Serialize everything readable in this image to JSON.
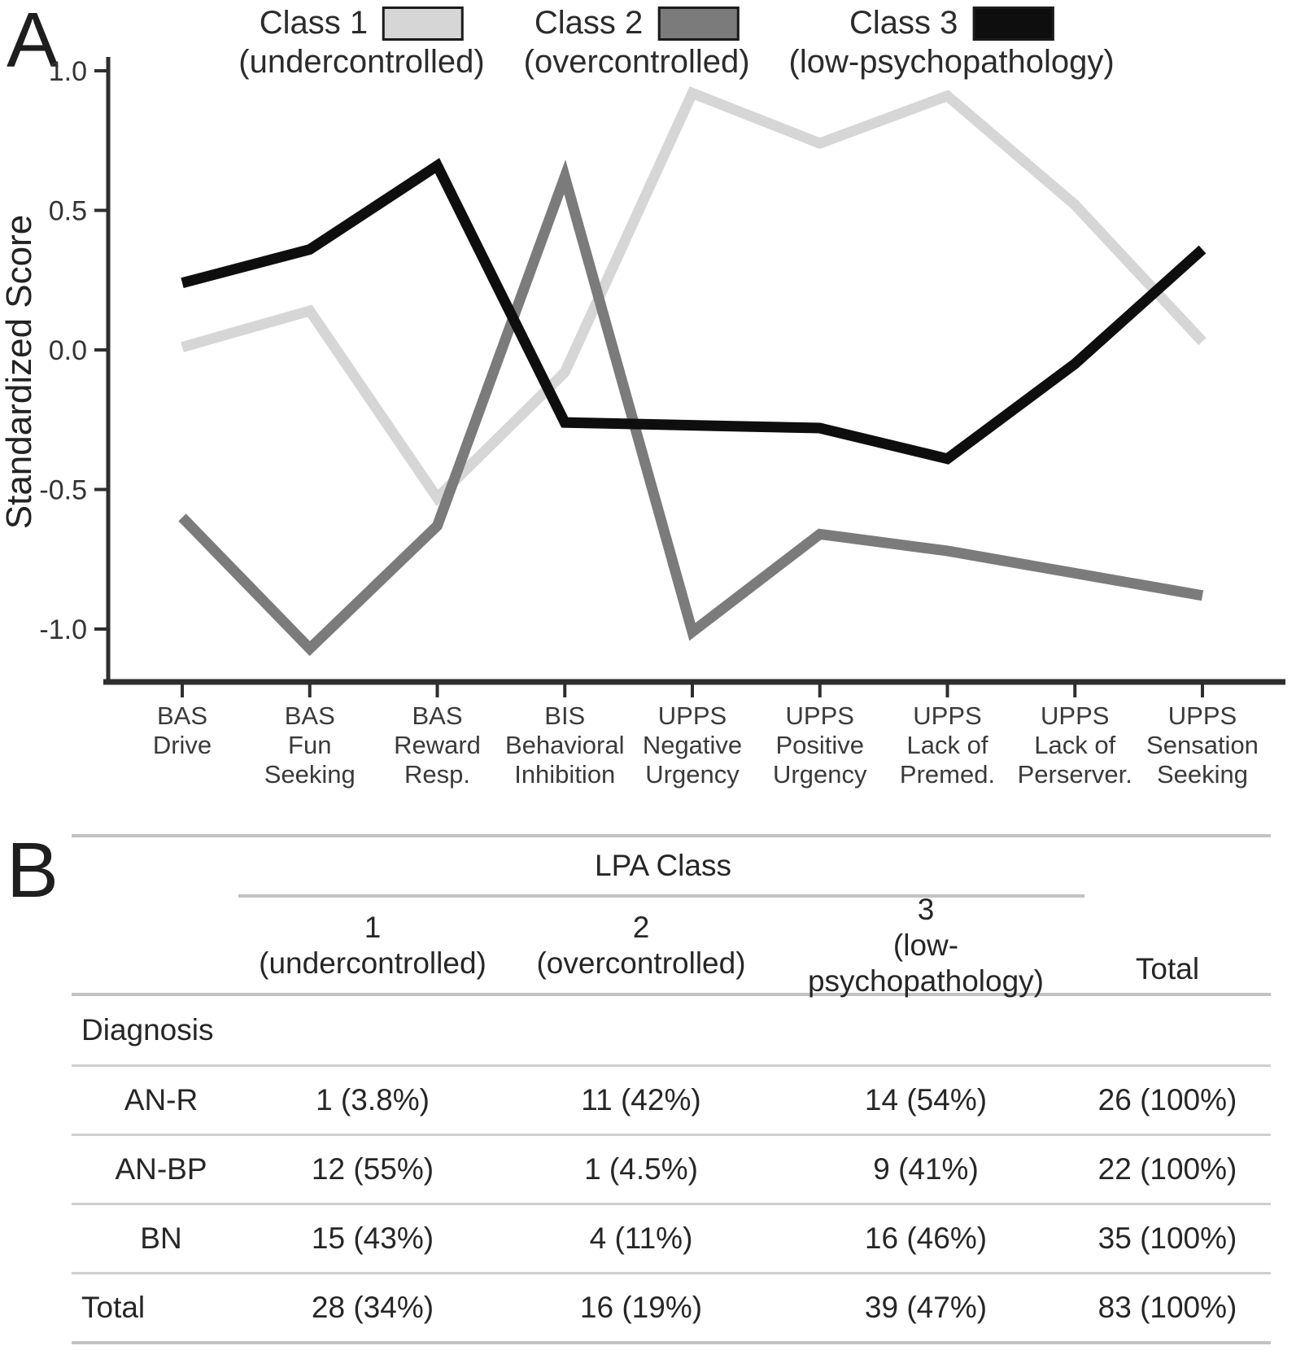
{
  "panel_a": {
    "label": "A",
    "legend": [
      {
        "name": "Class 1",
        "sub": "(undercontrolled)",
        "color": "#d6d6d6"
      },
      {
        "name": "Class 2",
        "sub": "(overcontrolled)",
        "color": "#7b7b7b"
      },
      {
        "name": "Class 3",
        "sub": "(low-psychopathology)",
        "color": "#0e0e0e"
      }
    ],
    "yticks": [
      "1.0",
      "0.5",
      "0.0",
      "-0.5",
      "-1.0"
    ]
  },
  "chart_data": {
    "type": "line",
    "title": "",
    "xlabel": "",
    "ylabel": "Standardized Score",
    "ylim": [
      -1.2,
      1.05
    ],
    "grid": false,
    "legend_position": "top",
    "categories": [
      "BAS Drive",
      "BAS Fun Seeking",
      "BAS Reward Resp.",
      "BIS Behavioral Inhibition",
      "UPPS Negative Urgency",
      "UPPS Positive Urgency",
      "UPPS Lack of Premed.",
      "UPPS Lack of Perserver.",
      "UPPS Sensation Seeking"
    ],
    "tick_label_lines": [
      [
        "BAS",
        "Drive"
      ],
      [
        "BAS",
        "Fun",
        "Seeking"
      ],
      [
        "BAS",
        "Reward",
        "Resp."
      ],
      [
        "BIS",
        "Behavioral",
        "Inhibition"
      ],
      [
        "UPPS",
        "Negative",
        "Urgency"
      ],
      [
        "UPPS",
        "Positive",
        "Urgency"
      ],
      [
        "UPPS",
        "Lack of",
        "Premed."
      ],
      [
        "UPPS",
        "Lack of",
        "Perserver."
      ],
      [
        "UPPS",
        "Sensation",
        "Seeking"
      ]
    ],
    "series": [
      {
        "id": "class-1",
        "name": "Class 1 (undercontrolled)",
        "color": "#d6d6d6",
        "values": [
          0.01,
          0.14,
          -0.53,
          -0.08,
          0.92,
          0.74,
          0.91,
          0.52,
          0.03
        ]
      },
      {
        "id": "class-2",
        "name": "Class 2 (overcontrolled)",
        "color": "#7b7b7b",
        "values": [
          -0.6,
          -1.07,
          -0.63,
          0.62,
          -1.01,
          -0.66,
          -0.72,
          -0.8,
          -0.88
        ]
      },
      {
        "id": "class-3",
        "name": "Class 3 (low-psychopathology)",
        "color": "#0e0e0e",
        "values": [
          0.24,
          0.36,
          0.66,
          -0.26,
          -0.27,
          -0.28,
          -0.39,
          -0.05,
          0.36
        ]
      }
    ]
  },
  "panel_b": {
    "label": "B",
    "table": {
      "group_header": "LPA Class",
      "columns": [
        {
          "num": "1",
          "sub": "(undercontrolled)"
        },
        {
          "num": "2",
          "sub": "(overcontrolled)"
        },
        {
          "num": "3",
          "sub": "(low-psychopathology)"
        }
      ],
      "total_label": "Total",
      "section_label": "Diagnosis",
      "rows": [
        {
          "label": "AN-R",
          "cells": [
            "1 (3.8%)",
            "11 (42%)",
            "14 (54%)",
            "26 (100%)"
          ]
        },
        {
          "label": "AN-BP",
          "cells": [
            "12 (55%)",
            "1 (4.5%)",
            "9 (41%)",
            "22 (100%)"
          ]
        },
        {
          "label": "BN",
          "cells": [
            "15 (43%)",
            "4 (11%)",
            "16 (46%)",
            "35 (100%)"
          ]
        },
        {
          "label": "Total",
          "cells": [
            "28 (34%)",
            "16 (19%)",
            "39 (47%)",
            "83 (100%)"
          ]
        }
      ]
    }
  }
}
